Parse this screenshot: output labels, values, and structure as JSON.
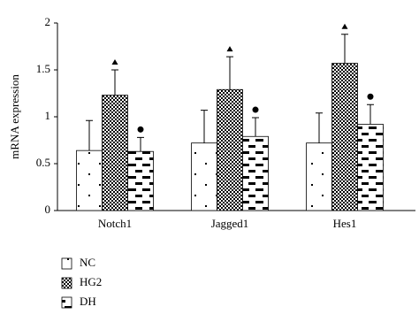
{
  "chart_data": {
    "type": "bar",
    "ylabel": "mRNA expression",
    "categories": [
      "Notch1",
      "Jagged1",
      "Hes1"
    ],
    "series": [
      {
        "name": "NC",
        "color": "#000000",
        "pattern": "dots",
        "values": [
          0.64,
          0.72,
          0.72
        ],
        "errors": [
          0.32,
          0.35,
          0.32
        ]
      },
      {
        "name": "HG2",
        "color": "#000000",
        "pattern": "checker",
        "values": [
          1.23,
          1.29,
          1.57
        ],
        "errors": [
          0.27,
          0.35,
          0.31
        ],
        "marker": "triangle"
      },
      {
        "name": "DH",
        "color": "#000000",
        "pattern": "dashes",
        "values": [
          0.63,
          0.79,
          0.92
        ],
        "errors": [
          0.15,
          0.2,
          0.21
        ],
        "marker": "circle"
      }
    ],
    "ylim": [
      0,
      2
    ],
    "yticks": [
      0,
      0.5,
      1,
      1.5,
      2
    ],
    "grid": false,
    "legend": "bottom-left"
  }
}
